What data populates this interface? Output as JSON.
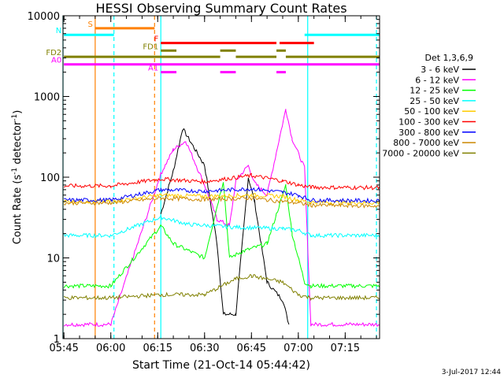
{
  "chart_data": {
    "type": "line",
    "title": "HESSI Observing Summary Count Rates",
    "xlabel": "Start Time (21-Oct-14 05:44:42)",
    "ylabel_main": "Count Rate (s",
    "ylabel_sup1": "-1",
    "ylabel_mid": " detector",
    "ylabel_sup2": "-1",
    "ylabel_end": ")",
    "yscale": "log",
    "ylim": [
      1,
      10000
    ],
    "xlim_minutes": [
      "05:44:42",
      "07:26:00"
    ],
    "y_ticks": [
      {
        "value": 1,
        "label": "1"
      },
      {
        "value": 10,
        "label": "10"
      },
      {
        "value": 100,
        "label": "100"
      },
      {
        "value": 1000,
        "label": "1000"
      },
      {
        "value": 10000,
        "label": "10000"
      }
    ],
    "x_ticks": [
      {
        "value": "05:45",
        "label": "05:45"
      },
      {
        "value": "06:00",
        "label": "06:00"
      },
      {
        "value": "06:15",
        "label": "06:15"
      },
      {
        "value": "06:30",
        "label": "06:30"
      },
      {
        "value": "06:45",
        "label": "06:45"
      },
      {
        "value": "07:00",
        "label": "07:00"
      },
      {
        "value": "07:15",
        "label": "07:15"
      }
    ],
    "legend_title": "Det 1,3,6,9",
    "legend_position": "right",
    "series": [
      {
        "name": "3 - 6 keV",
        "color": "#000000",
        "x": [
          "05:45",
          "06:16",
          "06:20",
          "06:23",
          "06:30",
          "06:34",
          "06:36",
          "06:40",
          "06:44",
          "06:46",
          "06:50",
          "06:55",
          "06:57",
          "07:00"
        ],
        "y": [
          null,
          35,
          120,
          400,
          140,
          15,
          2,
          2,
          100,
          50,
          5,
          3,
          1.5,
          null
        ]
      },
      {
        "name": "6 - 12 keV",
        "color": "#ff00ff",
        "x": [
          "05:45",
          "06:00",
          "06:16",
          "06:20",
          "06:24",
          "06:30",
          "06:34",
          "06:38",
          "06:40",
          "06:44",
          "06:46",
          "06:50",
          "06:56",
          "06:58",
          "07:02",
          "07:04",
          "07:26"
        ],
        "y": [
          1.5,
          1.5,
          110,
          220,
          280,
          80,
          30,
          25,
          90,
          140,
          85,
          60,
          700,
          300,
          130,
          1.5,
          1.5
        ]
      },
      {
        "name": "12 - 25 keV",
        "color": "#00ff00",
        "x": [
          "05:45",
          "06:00",
          "06:16",
          "06:20",
          "06:30",
          "06:36",
          "06:38",
          "06:42",
          "06:50",
          "06:56",
          "06:58",
          "07:02",
          "07:04",
          "07:26"
        ],
        "y": [
          4.5,
          4.5,
          25,
          15,
          10,
          90,
          10,
          12,
          15,
          80,
          20,
          5,
          4.5,
          4.5
        ]
      },
      {
        "name": "25 - 50 keV",
        "color": "#00ffff",
        "x": [
          "05:45",
          "06:00",
          "06:16",
          "06:25",
          "06:40",
          "06:55",
          "07:00",
          "07:04",
          "07:26"
        ],
        "y": [
          19,
          19,
          32,
          26,
          24,
          23,
          22,
          19,
          19
        ]
      },
      {
        "name": "50 - 100 keV",
        "color": "#ffcc00",
        "x": [
          "05:45",
          "06:00",
          "06:16",
          "06:30",
          "06:45",
          "06:55",
          "07:00",
          "07:04",
          "07:26"
        ],
        "y": [
          50,
          50,
          60,
          58,
          60,
          58,
          52,
          49,
          48
        ]
      },
      {
        "name": "100 - 300 keV",
        "color": "#ff0000",
        "x": [
          "05:45",
          "06:00",
          "06:16",
          "06:30",
          "06:45",
          "06:55",
          "07:00",
          "07:04",
          "07:26"
        ],
        "y": [
          78,
          78,
          95,
          88,
          105,
          90,
          80,
          75,
          74
        ]
      },
      {
        "name": "300 - 800 keV",
        "color": "#0000ff",
        "x": [
          "05:45",
          "06:00",
          "06:16",
          "06:30",
          "06:45",
          "06:55",
          "07:00",
          "07:04",
          "07:26"
        ],
        "y": [
          52,
          52,
          70,
          67,
          72,
          65,
          60,
          52,
          51
        ]
      },
      {
        "name": "800 - 7000 keV",
        "color": "#cc8800",
        "x": [
          "05:45",
          "06:00",
          "06:16",
          "06:30",
          "06:45",
          "06:55",
          "07:00",
          "07:04",
          "07:26"
        ],
        "y": [
          48,
          48,
          55,
          53,
          55,
          50,
          48,
          45,
          44
        ]
      },
      {
        "name": "7000 - 20000 keV",
        "color": "#808000",
        "x": [
          "05:45",
          "06:00",
          "06:16",
          "06:30",
          "06:40",
          "06:45",
          "06:55",
          "07:00",
          "07:04",
          "07:26"
        ],
        "y": [
          3.2,
          3.2,
          3.5,
          3.5,
          5.5,
          6,
          5,
          3.5,
          3.2,
          3.2
        ]
      }
    ],
    "flag_bars": [
      {
        "label": "S",
        "color": "#ff8000",
        "value": 7000,
        "segments": [
          [
            "05:55",
            "06:14"
          ]
        ]
      },
      {
        "label": "N",
        "color": "#00ffff",
        "value": 5800,
        "segments": [
          [
            "05:45",
            "06:01"
          ],
          [
            "07:02",
            "07:26"
          ]
        ]
      },
      {
        "label": "F",
        "color": "#ff0000",
        "value": 4600,
        "segments": [
          [
            "06:16",
            "06:53"
          ],
          [
            "06:54",
            "07:05"
          ]
        ]
      },
      {
        "label": "FD1",
        "color": "#808000",
        "value": 3700,
        "segments": [
          [
            "06:16",
            "06:21"
          ],
          [
            "06:35",
            "06:40"
          ],
          [
            "06:53",
            "06:56"
          ]
        ]
      },
      {
        "label": "FD2",
        "color": "#808000",
        "value": 3100,
        "segments": [
          [
            "05:45",
            "06:35"
          ],
          [
            "06:40",
            "06:53"
          ],
          [
            "06:56",
            "07:26"
          ]
        ]
      },
      {
        "label": "A0",
        "color": "#ff00ff",
        "value": 2500,
        "segments": [
          [
            "05:45",
            "07:26"
          ]
        ]
      },
      {
        "label": "A1",
        "color": "#ff00ff",
        "value": 2000,
        "segments": [
          [
            "06:16",
            "06:21"
          ],
          [
            "06:35",
            "06:40"
          ],
          [
            "06:53",
            "06:56"
          ]
        ]
      }
    ],
    "vertical_markers": [
      {
        "x": "05:44:42",
        "color": "#00ffff",
        "style": "solid"
      },
      {
        "x": "05:55",
        "color": "#ff8000",
        "style": "solid"
      },
      {
        "x": "06:01",
        "color": "#00ffff",
        "style": "dashed"
      },
      {
        "x": "06:14",
        "color": "#ff8000",
        "style": "dashed"
      },
      {
        "x": "06:16",
        "color": "#00ffff",
        "style": "solid"
      },
      {
        "x": "07:03",
        "color": "#00ffff",
        "style": "solid"
      },
      {
        "x": "07:25",
        "color": "#00ffff",
        "style": "dashed"
      }
    ]
  },
  "footer": {
    "date": "3-Jul-2017 12:44"
  }
}
